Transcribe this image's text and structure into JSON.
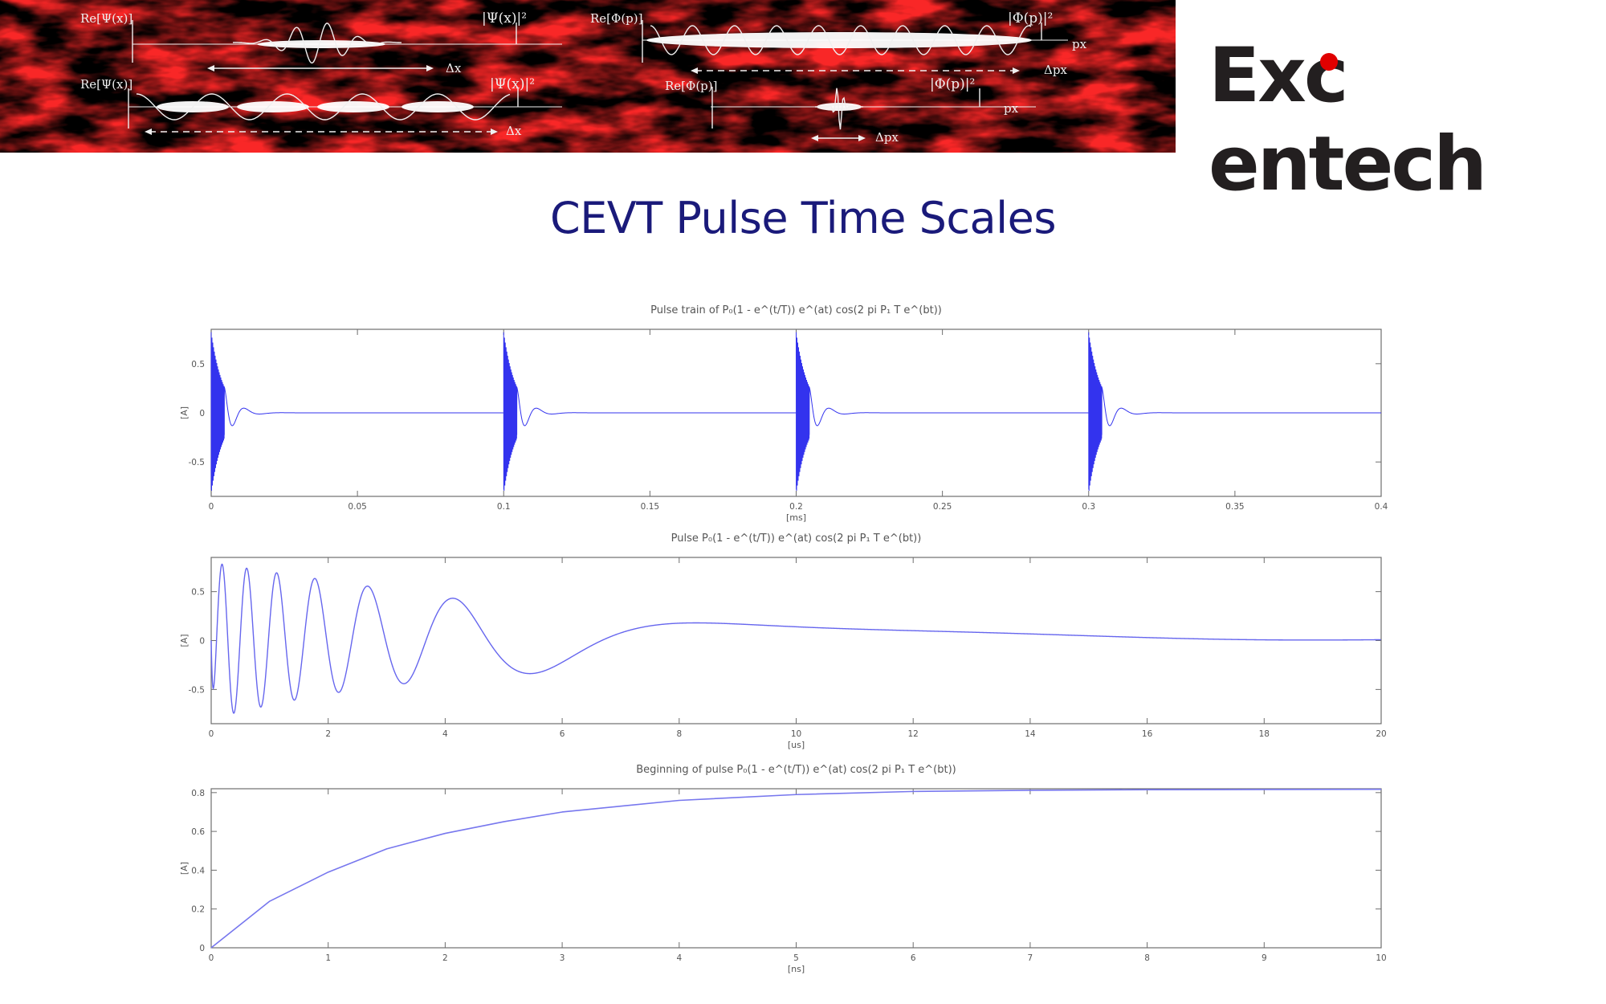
{
  "header": {
    "banner_labels": [
      "Re[Ψ(x)]",
      "|Ψ(x)|²",
      "Δx",
      "Re[Φ(p)]",
      "|Φ(p)|²",
      "px",
      "Δpx",
      "Re[Ψ(x)]",
      "|Ψ(x)|²",
      "Δx",
      "Re[Φ(p)]",
      "|Φ(p)|²",
      "px",
      "Δpx"
    ],
    "logo_text_a": "Ex",
    "logo_text_c": "c",
    "logo_text_b": "entech",
    "logo_dot_color": "#e00000"
  },
  "slide": {
    "title": "CEVT Pulse Time Scales"
  },
  "chart_data": [
    {
      "type": "line",
      "title": "Pulse train of P₀(1 - e^(t/T)) e^(at) cos(2 pi P₁ T e^(bt))",
      "xlabel": "[ms]",
      "ylabel": "[A]",
      "xlim": [
        0,
        0.4
      ],
      "ylim": [
        -0.85,
        0.85
      ],
      "xticks": [
        "0",
        "0.05",
        "0.1",
        "0.15",
        "0.2",
        "0.25",
        "0.3",
        "0.35",
        "0.4"
      ],
      "yticks": [
        "0.5",
        "0",
        "-0.5"
      ],
      "ytick_values": [
        0.5,
        0,
        -0.5
      ],
      "pulse_starts": [
        0,
        0.1,
        0.2,
        0.3
      ],
      "peak_amplitude": 0.82,
      "line_color": "#3333ee",
      "grid": false
    },
    {
      "type": "line",
      "title": "Pulse P₀(1 - e^(t/T)) e^(at) cos(2 pi P₁ T e^(bt))",
      "xlabel": "[us]",
      "ylabel": "[A]",
      "xlim": [
        0,
        20
      ],
      "ylim": [
        -0.85,
        0.85
      ],
      "xticks": [
        "0",
        "2",
        "4",
        "6",
        "8",
        "10",
        "12",
        "14",
        "16",
        "18",
        "20"
      ],
      "yticks": [
        "0.5",
        "0",
        "-0.5"
      ],
      "ytick_values": [
        0.5,
        0,
        -0.5
      ],
      "line_color": "#6666ee",
      "grid": false
    },
    {
      "type": "line",
      "title": "Beginning of pulse P₀(1 - e^(t/T)) e^(at) cos(2 pi P₁ T e^(bt))",
      "xlabel": "[ns]",
      "ylabel": "[A]",
      "xlim": [
        0,
        10
      ],
      "ylim": [
        0,
        0.82
      ],
      "xticks": [
        "0",
        "1",
        "2",
        "3",
        "4",
        "5",
        "6",
        "7",
        "8",
        "9",
        "10"
      ],
      "yticks": [
        "0.8",
        "0.6",
        "0.4",
        "0.2",
        "0"
      ],
      "ytick_values": [
        0.8,
        0.6,
        0.4,
        0.2,
        0
      ],
      "x": [
        0,
        0.5,
        1,
        1.5,
        2,
        2.5,
        3,
        3.5,
        4,
        5,
        6,
        7,
        8,
        9,
        10
      ],
      "y": [
        0,
        0.24,
        0.39,
        0.51,
        0.59,
        0.65,
        0.7,
        0.73,
        0.76,
        0.79,
        0.806,
        0.812,
        0.815,
        0.816,
        0.817
      ],
      "line_color": "#7777ee",
      "grid": false
    }
  ]
}
